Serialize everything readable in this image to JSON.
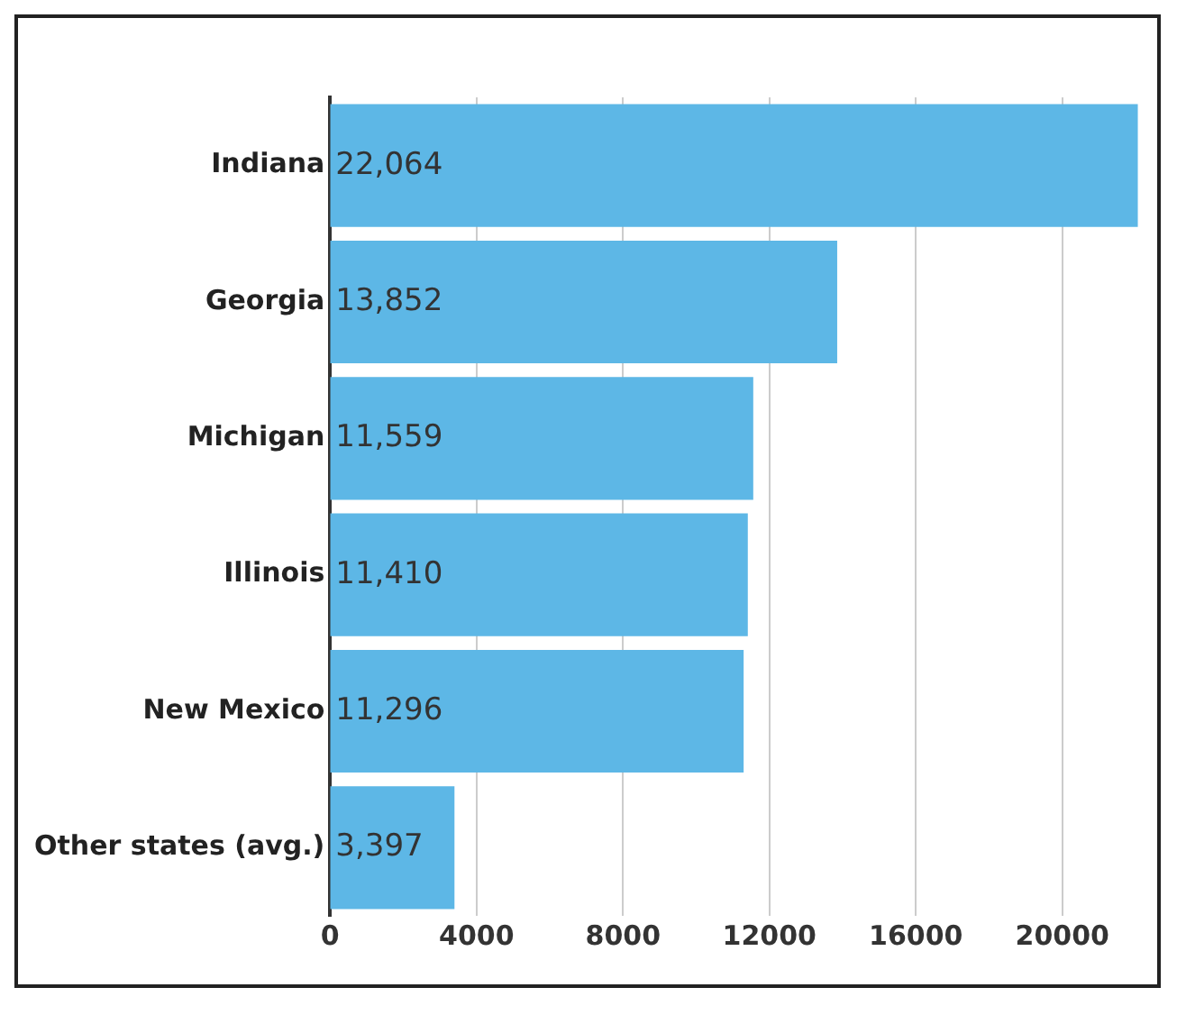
{
  "chart_data": {
    "type": "bar",
    "orientation": "horizontal",
    "categories": [
      "Indiana",
      "Georgia",
      "Michigan",
      "Illinois",
      "New Mexico",
      "Other states (avg.)"
    ],
    "values": [
      22064,
      13852,
      11559,
      11410,
      11296,
      3397
    ],
    "value_labels": [
      "22,064",
      "13,852",
      "11,559",
      "11,410",
      "11,296",
      "3,397"
    ],
    "color": "#5db7e6",
    "xlim": [
      0,
      22100
    ],
    "xticks": [
      0,
      4000,
      8000,
      12000,
      16000,
      20000
    ],
    "grid": "x"
  }
}
